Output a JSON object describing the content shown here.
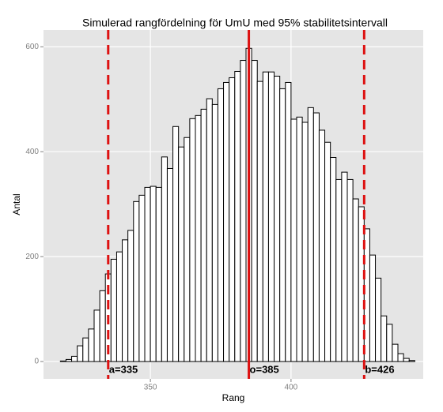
{
  "chart_data": {
    "type": "histogram",
    "title": "Simulerad rangfördelning för UmU med 95% stabilitetsintervall",
    "xlabel": "Rang",
    "ylabel": "Antal",
    "bins": [
      318,
      320,
      322,
      324,
      326,
      328,
      330,
      332,
      334,
      336,
      338,
      340,
      342,
      344,
      346,
      348,
      350,
      352,
      354,
      356,
      358,
      360,
      362,
      364,
      366,
      368,
      370,
      372,
      374,
      376,
      378,
      380,
      382,
      384,
      386,
      388,
      390,
      392,
      394,
      396,
      398,
      400,
      402,
      404,
      406,
      408,
      410,
      412,
      414,
      416,
      418,
      420,
      422,
      424,
      426,
      428,
      430,
      432,
      434,
      436,
      438,
      440,
      442,
      444
    ],
    "values": [
      1,
      4,
      10,
      30,
      45,
      62,
      98,
      135,
      167,
      195,
      209,
      232,
      250,
      305,
      317,
      332,
      334,
      332,
      390,
      368,
      448,
      409,
      427,
      463,
      469,
      481,
      501,
      490,
      520,
      532,
      541,
      553,
      574,
      597,
      574,
      534,
      552,
      552,
      544,
      520,
      532,
      462,
      466,
      456,
      484,
      474,
      441,
      418,
      389,
      347,
      361,
      347,
      310,
      295,
      253,
      203,
      159,
      87,
      71,
      33,
      15,
      6,
      2
    ],
    "color": "#ffffff",
    "edgecolor": "#000000",
    "xlim": [
      312,
      447
    ],
    "ylim": [
      -33,
      632
    ],
    "xticks": [
      350,
      400
    ],
    "yticks": [
      0,
      200,
      400,
      600
    ],
    "grid": true,
    "vlines": [
      {
        "value": 335,
        "label": "a=335",
        "style": "dashed",
        "color": "#dd1111"
      },
      {
        "value": 385,
        "label": "o=385",
        "style": "solid",
        "color": "#dd1111"
      },
      {
        "value": 426,
        "label": "b=426",
        "style": "dashed",
        "color": "#dd1111"
      }
    ]
  }
}
